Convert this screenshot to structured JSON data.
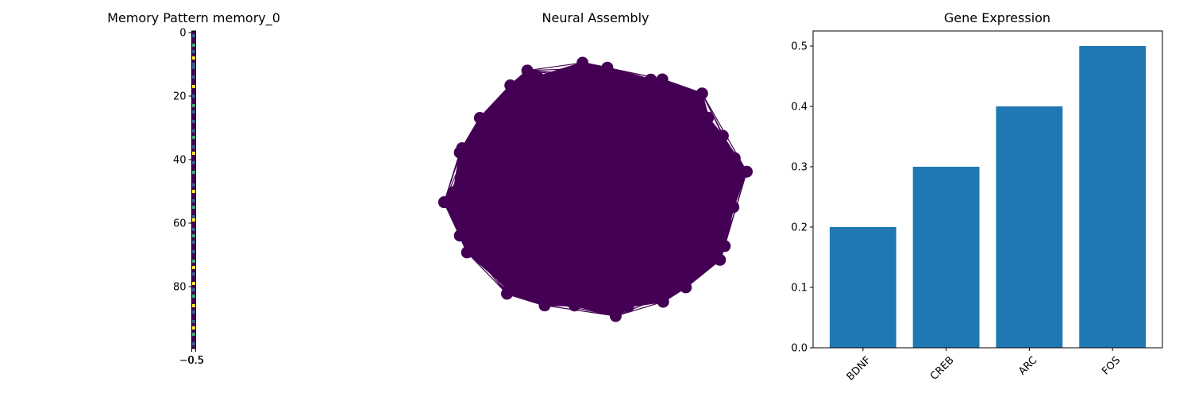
{
  "chart_data": [
    {
      "type": "heatmap",
      "title": "Memory Pattern memory_0",
      "colormap": "viridis",
      "shape": [
        100,
        1
      ],
      "values": [
        0.0,
        0.3,
        0.0,
        0.0,
        0.6,
        0.0,
        0.3,
        0.0,
        1.0,
        0.0,
        0.3,
        0.3,
        0.0,
        0.0,
        0.3,
        0.0,
        0.0,
        1.0,
        0.0,
        0.0,
        0.3,
        0.0,
        0.0,
        0.6,
        0.0,
        0.3,
        0.0,
        0.0,
        0.3,
        0.0,
        0.0,
        0.3,
        0.0,
        0.6,
        0.0,
        0.0,
        0.3,
        0.0,
        1.0,
        0.0,
        0.0,
        0.3,
        0.0,
        0.0,
        0.6,
        0.0,
        0.0,
        0.0,
        0.3,
        0.0,
        1.0,
        0.0,
        0.0,
        0.3,
        0.0,
        0.6,
        0.0,
        0.0,
        0.3,
        1.0,
        0.0,
        0.0,
        0.3,
        0.0,
        0.6,
        0.0,
        0.3,
        0.0,
        0.0,
        0.3,
        0.0,
        0.0,
        0.6,
        0.0,
        1.0,
        0.0,
        0.3,
        0.0,
        0.0,
        1.0,
        0.0,
        0.3,
        0.0,
        0.6,
        0.0,
        0.0,
        1.0,
        0.0,
        0.3,
        0.0,
        0.0,
        0.3,
        0.0,
        1.0,
        0.0,
        0.6,
        0.0,
        0.0,
        0.3,
        0.0
      ],
      "yticks": [
        0,
        20,
        40,
        60,
        80
      ],
      "ytick_labels": [
        "0",
        "20",
        "40",
        "60",
        "80"
      ],
      "xtick_labels": [
        "−0.5",
        "0.5"
      ],
      "ylim": [
        -0.5,
        99.5
      ],
      "xlim": [
        -0.5,
        0.5
      ]
    },
    {
      "type": "network",
      "title": "Neural Assembly",
      "node_count": 30,
      "edge_pattern": "dense, nearly fully connected",
      "node_color": "#440154",
      "edge_color": "#440154"
    },
    {
      "type": "bar",
      "title": "Gene Expression",
      "categories": [
        "BDNF",
        "CREB",
        "ARC",
        "FOS"
      ],
      "values": [
        0.2,
        0.3,
        0.4,
        0.5
      ],
      "ylim": [
        0,
        0.525
      ],
      "yticks": [
        0.0,
        0.1,
        0.2,
        0.3,
        0.4,
        0.5
      ],
      "ytick_labels": [
        "0.0",
        "0.1",
        "0.2",
        "0.3",
        "0.4",
        "0.5"
      ],
      "bar_color": "#1f77b4",
      "xtick_rotation": 45
    }
  ]
}
